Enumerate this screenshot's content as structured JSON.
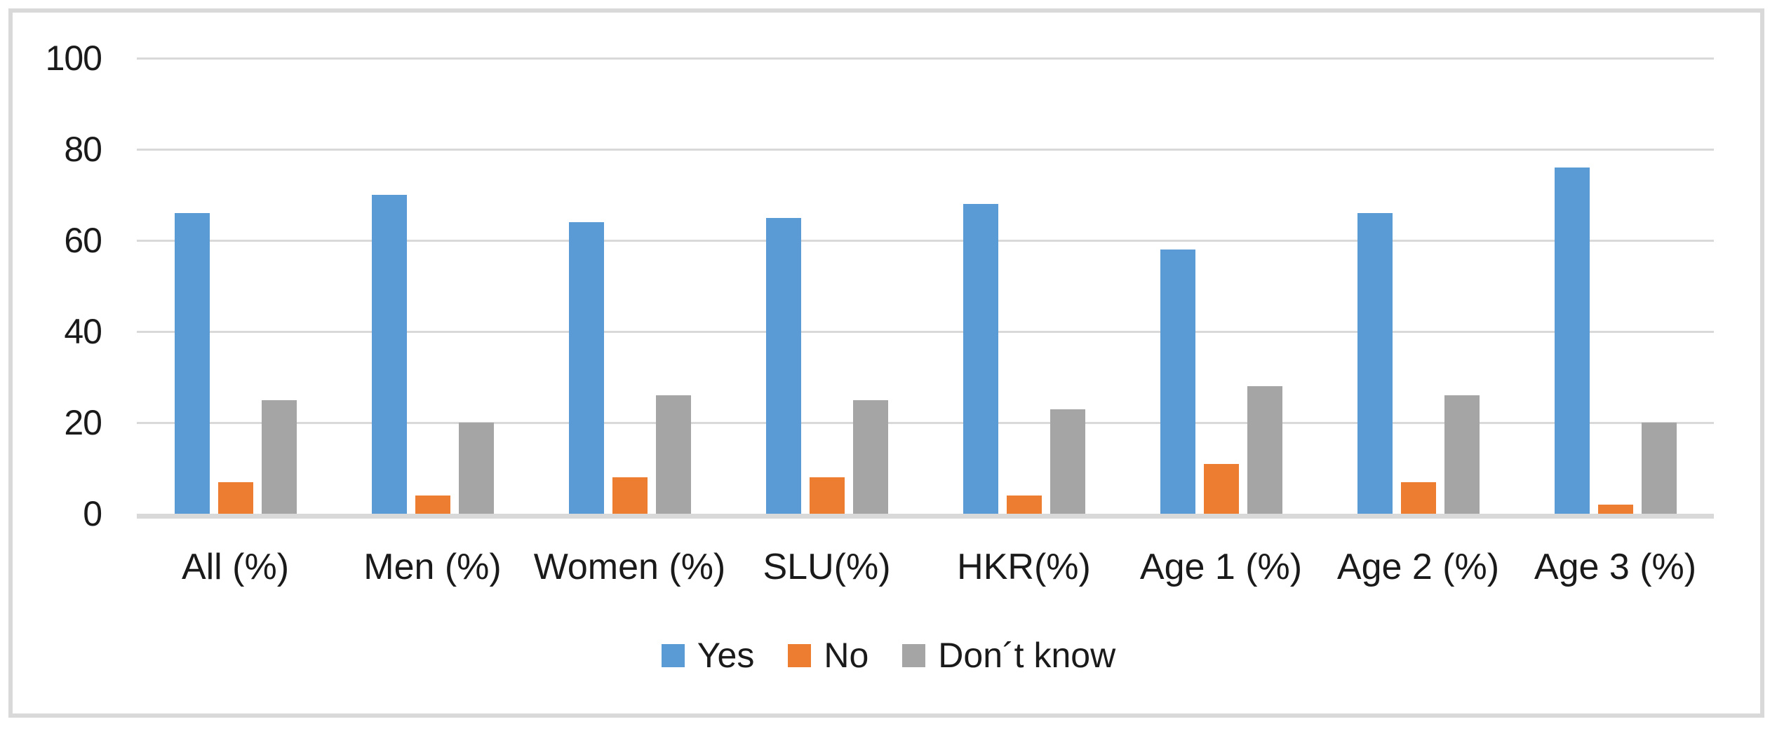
{
  "chart_data": {
    "type": "bar",
    "title": "",
    "xlabel": "",
    "ylabel": "",
    "categories": [
      "All (%)",
      "Men (%)",
      "Women (%)",
      "SLU(%)",
      "HKR(%)",
      "Age 1 (%)",
      "Age 2 (%)",
      "Age 3 (%)"
    ],
    "series": [
      {
        "name": "Yes",
        "color": "#5B9BD5",
        "values": [
          66,
          70,
          64,
          65,
          68,
          58,
          66,
          76
        ]
      },
      {
        "name": "No",
        "color": "#ED7D31",
        "values": [
          7,
          4,
          8,
          8,
          4,
          11,
          7,
          2
        ]
      },
      {
        "name": "Don´t know",
        "color": "#A5A5A5",
        "values": [
          25,
          20,
          26,
          25,
          23,
          28,
          26,
          20
        ]
      }
    ],
    "ylim": [
      0,
      100
    ],
    "yticks": [
      0,
      20,
      40,
      60,
      80,
      100
    ],
    "grid": true,
    "legend_position": "bottom"
  },
  "style": {
    "grid_color": "#D9D9D9",
    "axis_color": "#D9D9D9",
    "text_color": "#1a1a1a",
    "frame_border_color": "#D9D9D9",
    "background": "#FFFFFF"
  }
}
